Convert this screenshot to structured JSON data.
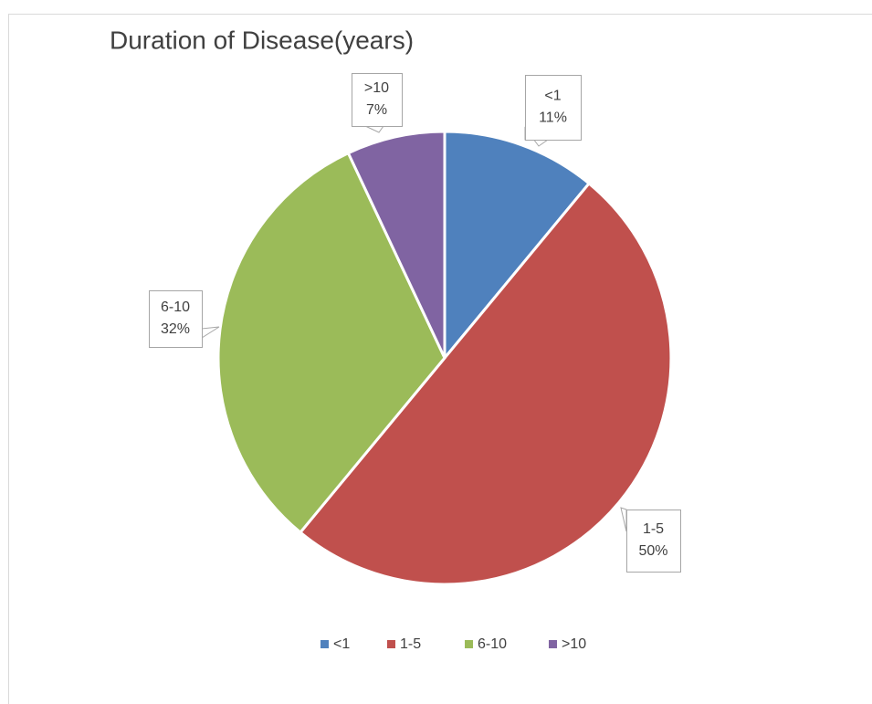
{
  "chart_data": {
    "type": "pie",
    "title": "Duration of Disease(years)",
    "categories": [
      "<1",
      "1-5",
      "6-10",
      ">10"
    ],
    "values": [
      11,
      50,
      32,
      7
    ],
    "value_labels": [
      "11%",
      "50%",
      "32%",
      "7%"
    ],
    "colors": [
      "#4f81bd",
      "#c0504d",
      "#9bbb59",
      "#8064a2"
    ],
    "legend": "bottom"
  }
}
